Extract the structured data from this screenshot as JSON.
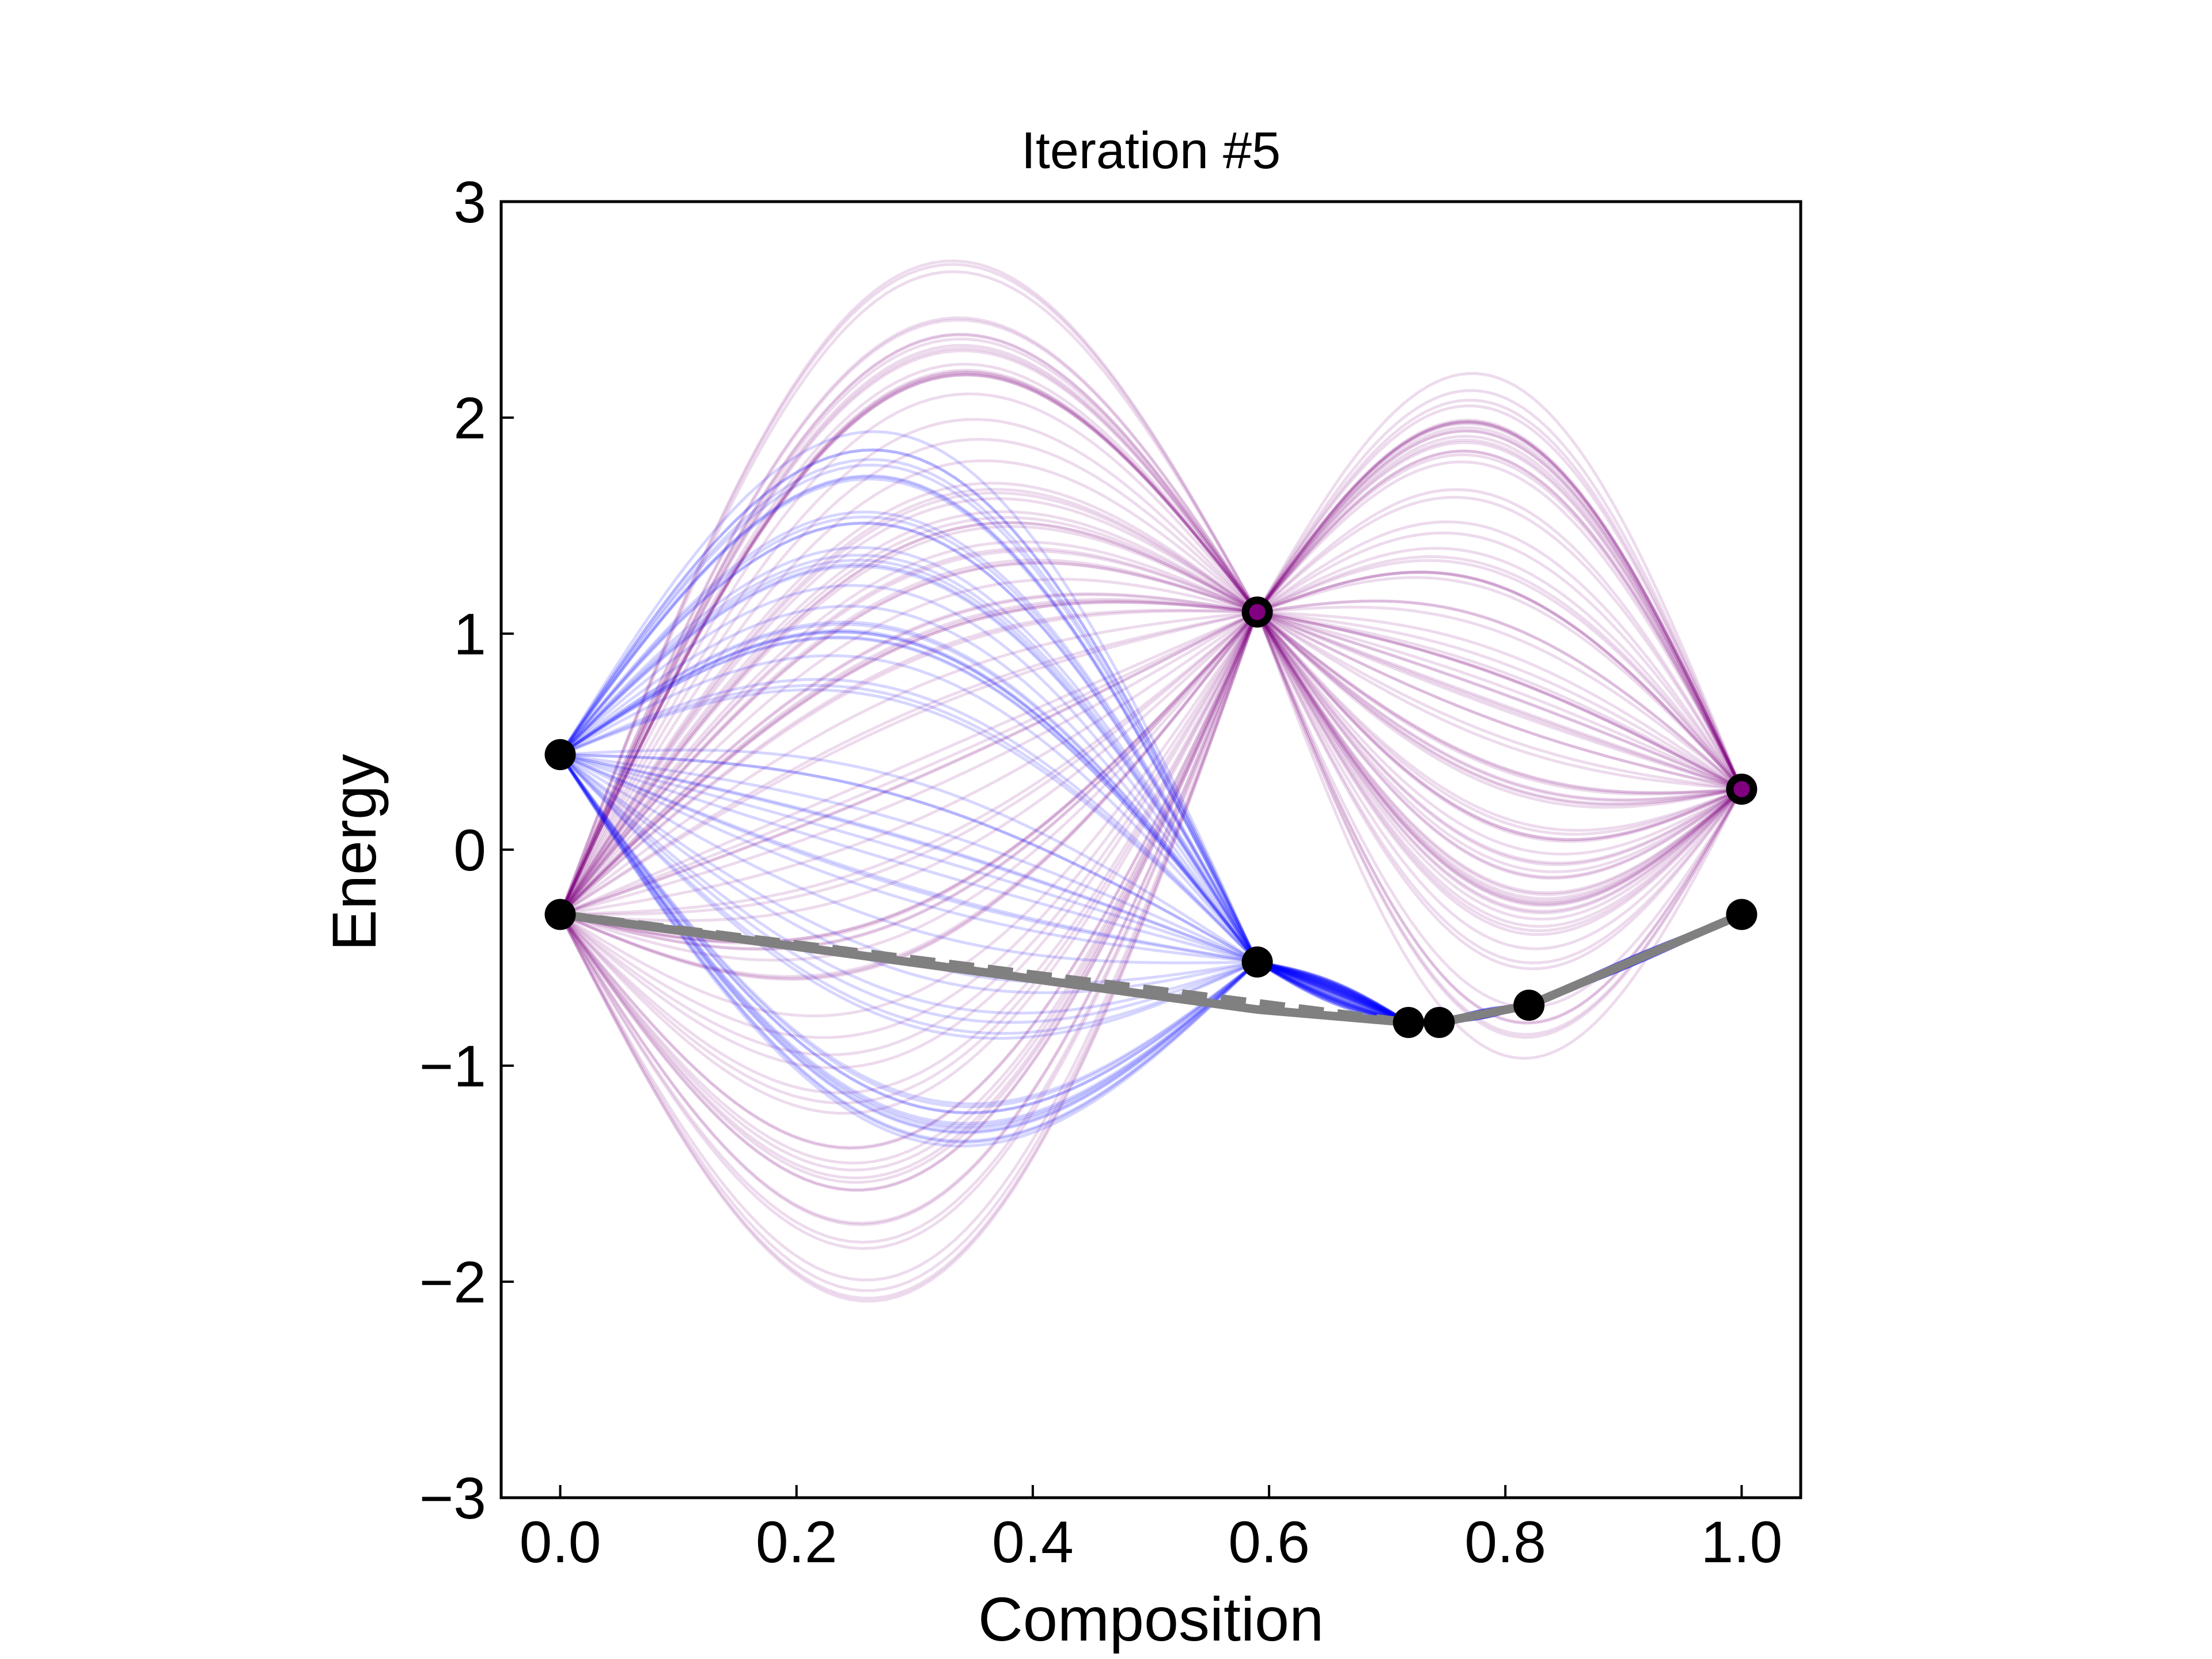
{
  "chart_data": {
    "type": "line",
    "title": "Iteration #5",
    "xlabel": "Composition",
    "ylabel": "Energy",
    "xlim": [
      -0.05,
      1.05
    ],
    "ylim": [
      -3,
      3
    ],
    "xticks": [
      0.0,
      0.2,
      0.4,
      0.6,
      0.8,
      1.0
    ],
    "xtick_labels": [
      "0.0",
      "0.2",
      "0.4",
      "0.6",
      "0.8",
      "1.0"
    ],
    "yticks": [
      -3,
      -2,
      -1,
      0,
      1,
      2,
      3
    ],
    "ytick_labels": [
      "−3",
      "−2",
      "−1",
      "0",
      "1",
      "2",
      "3"
    ],
    "grid": false,
    "colors": {
      "blue_samples": "#0000ff",
      "purple_samples": "#800080",
      "hull": "#808080",
      "points": "#000000"
    },
    "series": [
      {
        "style": "black-markers",
        "x": [
          0.0,
          0.0,
          0.59,
          0.59,
          0.718,
          0.744,
          0.82,
          1.0,
          1.0
        ],
        "y": [
          0.44,
          -0.3,
          -0.52,
          1.1,
          -0.8,
          -0.8,
          -0.72,
          -0.3,
          0.28
        ]
      },
      {
        "style": "purple-marker-overlay",
        "x": [
          0.59,
          1.0
        ],
        "y": [
          1.1,
          0.28
        ]
      },
      {
        "style": "gray-solid",
        "x": [
          0.0,
          0.59,
          0.718,
          0.744,
          0.82,
          1.0
        ],
        "y": [
          -0.3,
          -0.74,
          -0.8,
          -0.8,
          -0.72,
          -0.3
        ]
      },
      {
        "style": "gray-dashed",
        "x": [
          0.0,
          0.718,
          0.744,
          0.82,
          1.0
        ],
        "y": [
          -0.3,
          -0.8,
          -0.8,
          -0.72,
          -0.3
        ]
      },
      {
        "style": "blue-sample-band",
        "anchors_x": [
          0.0,
          0.59,
          0.718,
          0.744,
          0.82,
          1.0
        ],
        "anchors_y": [
          0.44,
          -0.52,
          -0.8,
          -0.8,
          -0.72,
          -0.3
        ],
        "count": 60,
        "band_max": [
          1.95,
          0.1,
          0.0
        ],
        "band_min": [
          -1.35,
          -0.1,
          0.0
        ]
      },
      {
        "style": "purple-sample-band",
        "anchors_x": [
          0.0,
          0.59,
          1.0
        ],
        "anchors_y": [
          -0.3,
          1.1,
          0.28
        ],
        "count": 90,
        "band_max": [
          2.7,
          2.2
        ],
        "band_min": [
          -2.05,
          -0.95
        ]
      }
    ]
  }
}
